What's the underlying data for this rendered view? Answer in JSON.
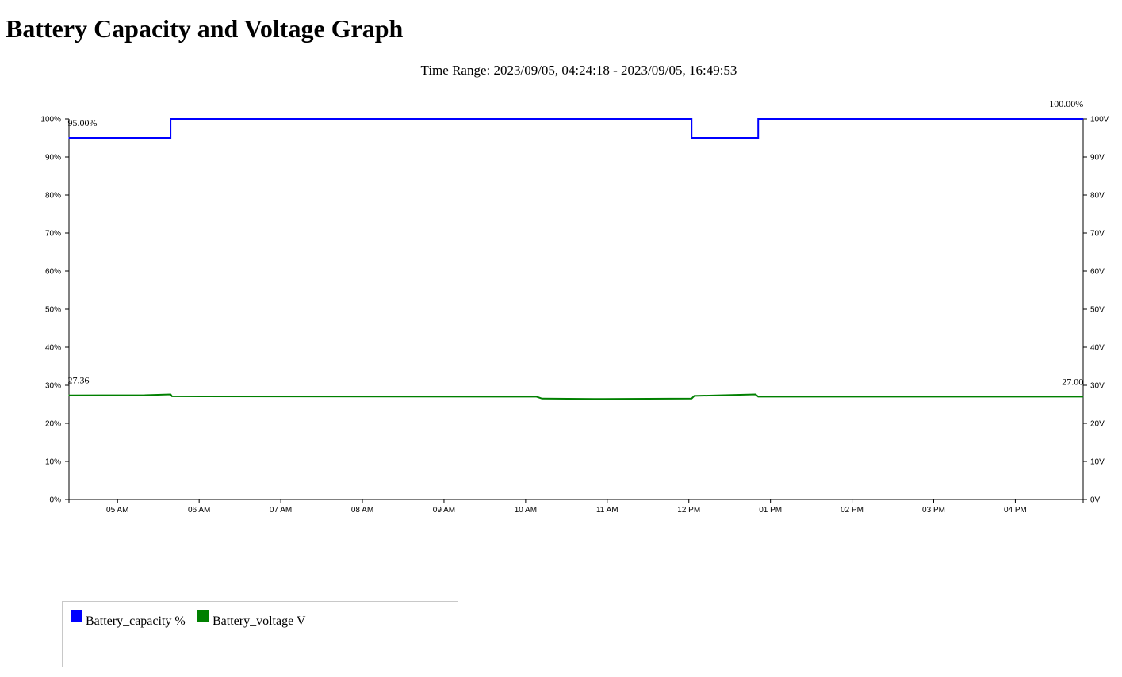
{
  "page": {
    "title": "Battery Capacity and Voltage Graph",
    "time_range": "Time Range: 2023/09/05, 04:24:18 - 2023/09/05, 16:49:53"
  },
  "chart_data": {
    "type": "line",
    "title": "Battery Capacity and Voltage Graph",
    "time_range": [
      "2023-09-05 04:24:18",
      "2023-09-05 16:49:53"
    ],
    "xlim": [
      "04:24",
      "16:50"
    ],
    "x_ticks": [
      {
        "t": "05:00",
        "label": "05 AM"
      },
      {
        "t": "06:00",
        "label": "06 AM"
      },
      {
        "t": "07:00",
        "label": "07 AM"
      },
      {
        "t": "08:00",
        "label": "08 AM"
      },
      {
        "t": "09:00",
        "label": "09 AM"
      },
      {
        "t": "10:00",
        "label": "10 AM"
      },
      {
        "t": "11:00",
        "label": "11 AM"
      },
      {
        "t": "12:00",
        "label": "12 PM"
      },
      {
        "t": "13:00",
        "label": "01 PM"
      },
      {
        "t": "14:00",
        "label": "02 PM"
      },
      {
        "t": "15:00",
        "label": "03 PM"
      },
      {
        "t": "16:00",
        "label": "04 PM"
      }
    ],
    "y_left": {
      "ylim": [
        0,
        100
      ],
      "ticks": [
        {
          "v": 0,
          "label": "0%"
        },
        {
          "v": 10,
          "label": "10%"
        },
        {
          "v": 20,
          "label": "20%"
        },
        {
          "v": 30,
          "label": "30%"
        },
        {
          "v": 40,
          "label": "40%"
        },
        {
          "v": 50,
          "label": "50%"
        },
        {
          "v": 60,
          "label": "60%"
        },
        {
          "v": 70,
          "label": "70%"
        },
        {
          "v": 80,
          "label": "80%"
        },
        {
          "v": 90,
          "label": "90%"
        },
        {
          "v": 100,
          "label": "100%"
        }
      ]
    },
    "y_right": {
      "ylim": [
        0,
        100
      ],
      "ticks": [
        {
          "v": 0,
          "label": "0V"
        },
        {
          "v": 10,
          "label": "10V"
        },
        {
          "v": 20,
          "label": "20V"
        },
        {
          "v": 30,
          "label": "30V"
        },
        {
          "v": 40,
          "label": "40V"
        },
        {
          "v": 50,
          "label": "50V"
        },
        {
          "v": 60,
          "label": "60V"
        },
        {
          "v": 70,
          "label": "70V"
        },
        {
          "v": 80,
          "label": "80V"
        },
        {
          "v": 90,
          "label": "90V"
        },
        {
          "v": 100,
          "label": "100V"
        }
      ]
    },
    "grid": false,
    "legend_position": "bottom-left",
    "series": [
      {
        "name": "Battery_capacity %",
        "color": "#0000ff",
        "axis": "left",
        "step": true,
        "points": [
          {
            "t": "04:24",
            "v": 95
          },
          {
            "t": "05:39",
            "v": 95
          },
          {
            "t": "05:39",
            "v": 100
          },
          {
            "t": "12:02",
            "v": 100
          },
          {
            "t": "12:02",
            "v": 95
          },
          {
            "t": "12:51",
            "v": 95
          },
          {
            "t": "12:51",
            "v": 100
          },
          {
            "t": "16:50",
            "v": 100
          }
        ],
        "first_label": "95.00%",
        "last_label": "100.00%"
      },
      {
        "name": "Battery_voltage V",
        "color": "#008000",
        "axis": "right",
        "step": false,
        "points": [
          {
            "t": "04:24",
            "v": 27.36
          },
          {
            "t": "05:20",
            "v": 27.4
          },
          {
            "t": "05:39",
            "v": 27.6
          },
          {
            "t": "05:40",
            "v": 27.1
          },
          {
            "t": "10:08",
            "v": 27.0
          },
          {
            "t": "10:12",
            "v": 26.5
          },
          {
            "t": "10:50",
            "v": 26.4
          },
          {
            "t": "12:02",
            "v": 26.5
          },
          {
            "t": "12:04",
            "v": 27.2
          },
          {
            "t": "12:49",
            "v": 27.6
          },
          {
            "t": "12:51",
            "v": 27.0
          },
          {
            "t": "16:50",
            "v": 27.0
          }
        ],
        "first_label": "27.36",
        "last_label": "27.00"
      }
    ]
  },
  "legend": {
    "items": [
      {
        "label": "Battery_capacity %",
        "color": "#0000ff"
      },
      {
        "label": "Battery_voltage V",
        "color": "#008000"
      }
    ]
  }
}
